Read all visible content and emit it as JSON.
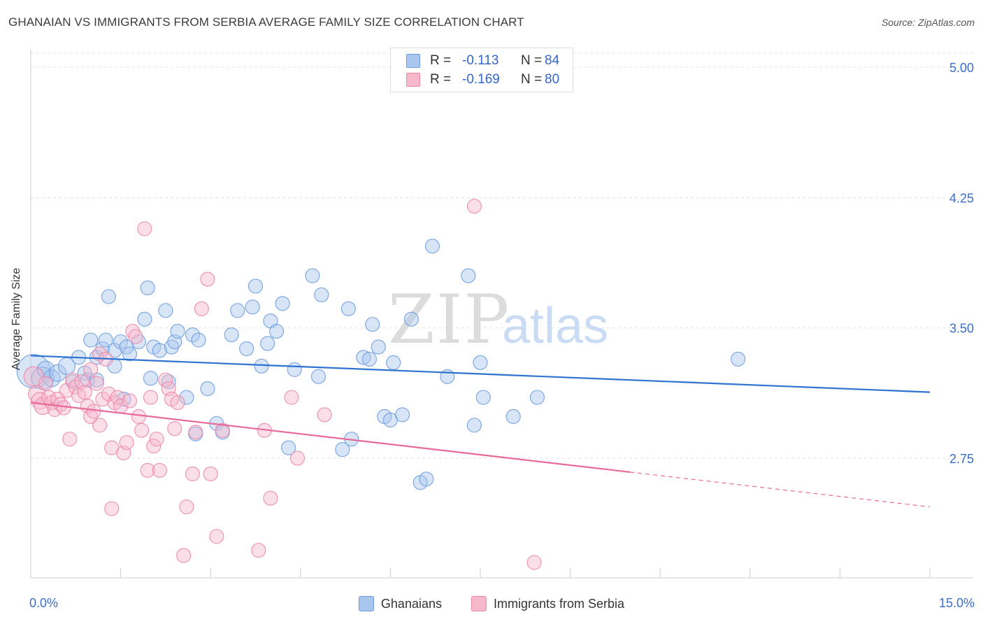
{
  "title": "GHANAIAN VS IMMIGRANTS FROM SERBIA AVERAGE FAMILY SIZE CORRELATION CHART",
  "source": "Source: ZipAtlas.com",
  "watermark": {
    "zip": "ZIP",
    "atlas": "atlas"
  },
  "colors": {
    "blue_fill": "#a9c6ee",
    "blue_stroke": "#6b9be0",
    "blue_line": "#2f73d0",
    "pink_fill": "#f6b8cb",
    "pink_stroke": "#ec86a7",
    "pink_line": "#e8699a",
    "tick_text": "#3a6fc9",
    "grid": "#e3e3e3"
  },
  "stats": [
    {
      "r_label": "R =",
      "r_value": "-0.113",
      "n_label": "N =",
      "n_value": "84",
      "color": "blue"
    },
    {
      "r_label": "R =",
      "r_value": "-0.169",
      "n_label": "N =",
      "n_value": "80",
      "color": "pink"
    }
  ],
  "legend": [
    {
      "label": "Ghanaians",
      "color": "blue"
    },
    {
      "label": "Immigrants from Serbia",
      "color": "pink"
    }
  ],
  "chart_data": {
    "type": "scatter",
    "ylabel": "Average Family Size",
    "xlim": [
      0,
      15
    ],
    "ylim": [
      2.1,
      5.1
    ],
    "x_tick_labels": [
      {
        "value": 0,
        "label": "0.0%"
      },
      {
        "value": 15,
        "label": "15.0%"
      }
    ],
    "y_ticks": [
      {
        "value": 5.0,
        "label": "5.00"
      },
      {
        "value": 4.25,
        "label": "4.25"
      },
      {
        "value": 3.5,
        "label": "3.50"
      },
      {
        "value": 2.75,
        "label": "2.75"
      }
    ],
    "grid": "horizontal dashed",
    "series": [
      {
        "name": "Ghanaians",
        "color": "blue",
        "trend": {
          "x0": 0,
          "y0": 3.34,
          "x1": 15,
          "y1": 3.13,
          "solid_to": 15
        },
        "points": [
          [
            0.05,
            3.25,
            24
          ],
          [
            0.2,
            3.21,
            16
          ],
          [
            0.25,
            3.26,
            12
          ],
          [
            0.35,
            3.21,
            12
          ],
          [
            0.45,
            3.24,
            12
          ],
          [
            0.6,
            3.28,
            12
          ],
          [
            0.7,
            3.19,
            10
          ],
          [
            0.8,
            3.33,
            10
          ],
          [
            0.9,
            3.24,
            10
          ],
          [
            0.95,
            3.2,
            10
          ],
          [
            1.0,
            3.43,
            10
          ],
          [
            1.1,
            3.33,
            10
          ],
          [
            1.1,
            3.2,
            10
          ],
          [
            1.2,
            3.38,
            10
          ],
          [
            1.25,
            3.43,
            10
          ],
          [
            1.3,
            3.68,
            10
          ],
          [
            1.4,
            3.37,
            10
          ],
          [
            1.4,
            3.28,
            10
          ],
          [
            1.5,
            3.42,
            10
          ],
          [
            1.6,
            3.39,
            10
          ],
          [
            1.55,
            3.09,
            10
          ],
          [
            1.65,
            3.35,
            10
          ],
          [
            1.8,
            3.42,
            10
          ],
          [
            1.9,
            3.55,
            10
          ],
          [
            1.95,
            3.73,
            10
          ],
          [
            2.0,
            3.21,
            10
          ],
          [
            2.05,
            3.39,
            10
          ],
          [
            2.15,
            3.37,
            10
          ],
          [
            2.25,
            3.6,
            10
          ],
          [
            2.3,
            3.19,
            10
          ],
          [
            2.35,
            3.39,
            10
          ],
          [
            2.4,
            3.42,
            10
          ],
          [
            2.45,
            3.48,
            10
          ],
          [
            2.6,
            3.1,
            10
          ],
          [
            2.7,
            3.46,
            10
          ],
          [
            2.75,
            2.89,
            10
          ],
          [
            2.8,
            3.43,
            10
          ],
          [
            2.95,
            3.15,
            10
          ],
          [
            3.1,
            2.95,
            10
          ],
          [
            3.2,
            2.9,
            10
          ],
          [
            3.35,
            3.46,
            10
          ],
          [
            3.45,
            3.6,
            10
          ],
          [
            3.6,
            3.38,
            10
          ],
          [
            3.7,
            3.62,
            10
          ],
          [
            3.75,
            3.74,
            10
          ],
          [
            3.85,
            3.28,
            10
          ],
          [
            3.95,
            3.41,
            10
          ],
          [
            4.0,
            3.54,
            10
          ],
          [
            4.1,
            3.48,
            10
          ],
          [
            4.2,
            3.64,
            10
          ],
          [
            4.3,
            2.81,
            10
          ],
          [
            4.4,
            3.26,
            10
          ],
          [
            4.7,
            3.8,
            10
          ],
          [
            4.8,
            3.22,
            10
          ],
          [
            4.85,
            3.69,
            10
          ],
          [
            5.2,
            2.8,
            10
          ],
          [
            5.3,
            3.61,
            10
          ],
          [
            5.35,
            2.86,
            10
          ],
          [
            5.55,
            3.33,
            10
          ],
          [
            5.65,
            3.32,
            10
          ],
          [
            5.7,
            3.52,
            10
          ],
          [
            5.8,
            3.39,
            10
          ],
          [
            5.9,
            2.99,
            10
          ],
          [
            6.0,
            2.97,
            10
          ],
          [
            6.05,
            3.3,
            10
          ],
          [
            6.2,
            3.0,
            10
          ],
          [
            6.35,
            3.55,
            10
          ],
          [
            6.5,
            2.61,
            10
          ],
          [
            6.6,
            2.63,
            10
          ],
          [
            6.7,
            3.97,
            10
          ],
          [
            6.95,
            3.22,
            10
          ],
          [
            7.3,
            3.8,
            10
          ],
          [
            7.4,
            2.94,
            10
          ],
          [
            7.5,
            3.3,
            10
          ],
          [
            7.55,
            3.1,
            10
          ],
          [
            8.05,
            2.99,
            10
          ],
          [
            8.45,
            3.1,
            10
          ],
          [
            11.8,
            3.32,
            10
          ]
        ]
      },
      {
        "name": "Immigrants from Serbia",
        "color": "pink",
        "trend": {
          "x0": 0,
          "y0": 3.07,
          "x1": 15,
          "y1": 2.47,
          "solid_to": 10.0
        },
        "points": [
          [
            0.05,
            3.22,
            14
          ],
          [
            0.1,
            3.12,
            12
          ],
          [
            0.15,
            3.08,
            12
          ],
          [
            0.2,
            3.05,
            12
          ],
          [
            0.25,
            3.18,
            10
          ],
          [
            0.3,
            3.1,
            10
          ],
          [
            0.35,
            3.07,
            10
          ],
          [
            0.4,
            3.03,
            10
          ],
          [
            0.45,
            3.09,
            10
          ],
          [
            0.5,
            3.06,
            10
          ],
          [
            0.55,
            3.04,
            10
          ],
          [
            0.6,
            3.14,
            10
          ],
          [
            0.65,
            2.86,
            10
          ],
          [
            0.7,
            3.2,
            10
          ],
          [
            0.75,
            3.16,
            10
          ],
          [
            0.8,
            3.11,
            10
          ],
          [
            0.85,
            3.19,
            10
          ],
          [
            0.9,
            3.13,
            10
          ],
          [
            0.95,
            3.05,
            10
          ],
          [
            1.0,
            2.99,
            10
          ],
          [
            1.0,
            3.26,
            10
          ],
          [
            1.05,
            3.02,
            10
          ],
          [
            1.1,
            3.18,
            10
          ],
          [
            1.15,
            3.35,
            10
          ],
          [
            1.15,
            2.94,
            10
          ],
          [
            1.2,
            3.09,
            10
          ],
          [
            1.25,
            3.32,
            10
          ],
          [
            1.3,
            3.12,
            10
          ],
          [
            1.35,
            2.81,
            10
          ],
          [
            1.35,
            2.46,
            10
          ],
          [
            1.4,
            3.07,
            10
          ],
          [
            1.45,
            3.1,
            10
          ],
          [
            1.5,
            3.05,
            10
          ],
          [
            1.55,
            2.78,
            10
          ],
          [
            1.6,
            2.84,
            10
          ],
          [
            1.65,
            3.08,
            10
          ],
          [
            1.7,
            3.48,
            10
          ],
          [
            1.75,
            3.45,
            10
          ],
          [
            1.8,
            2.99,
            10
          ],
          [
            1.85,
            2.91,
            10
          ],
          [
            1.9,
            4.07,
            10
          ],
          [
            1.95,
            2.68,
            10
          ],
          [
            2.0,
            3.1,
            10
          ],
          [
            2.05,
            2.82,
            10
          ],
          [
            2.1,
            2.86,
            10
          ],
          [
            2.15,
            2.68,
            10
          ],
          [
            2.25,
            3.2,
            10
          ],
          [
            2.3,
            3.15,
            10
          ],
          [
            2.35,
            3.09,
            10
          ],
          [
            2.4,
            2.92,
            10
          ],
          [
            2.45,
            3.07,
            10
          ],
          [
            2.55,
            2.19,
            10
          ],
          [
            2.6,
            2.47,
            10
          ],
          [
            2.7,
            2.66,
            10
          ],
          [
            2.75,
            2.9,
            10
          ],
          [
            2.85,
            3.61,
            10
          ],
          [
            2.95,
            3.78,
            10
          ],
          [
            3.0,
            2.66,
            10
          ],
          [
            3.1,
            2.3,
            10
          ],
          [
            3.2,
            2.91,
            10
          ],
          [
            3.8,
            2.22,
            10
          ],
          [
            3.9,
            2.91,
            10
          ],
          [
            4.0,
            2.52,
            10
          ],
          [
            4.35,
            3.1,
            10
          ],
          [
            4.45,
            2.75,
            10
          ],
          [
            4.9,
            3.0,
            10
          ],
          [
            7.4,
            4.2,
            10
          ],
          [
            8.4,
            2.15,
            10
          ]
        ]
      }
    ]
  }
}
